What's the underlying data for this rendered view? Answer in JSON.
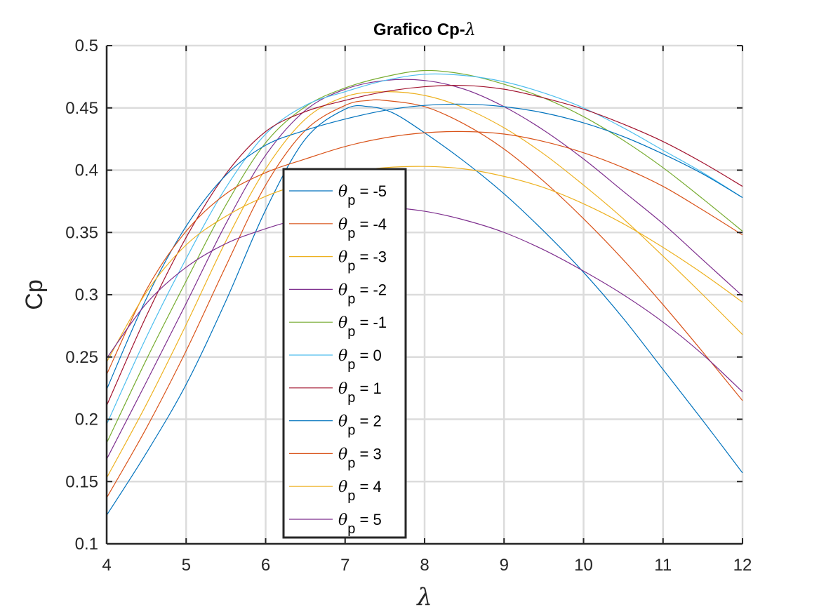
{
  "chart_data": {
    "type": "line",
    "title_prefix": "Grafico Cp-",
    "title_symbol": "λ",
    "xlabel": "λ",
    "ylabel": "Cp",
    "xlim": [
      4,
      12
    ],
    "ylim": [
      0.1,
      0.5
    ],
    "xticks": [
      "4",
      "5",
      "6",
      "7",
      "8",
      "9",
      "10",
      "11",
      "12"
    ],
    "yticks": [
      "0.1",
      "0.15",
      "0.2",
      "0.25",
      "0.3",
      "0.35",
      "0.4",
      "0.45",
      "0.5"
    ],
    "grid": true,
    "legend_location": "inside, lower center-left",
    "legend_symbol": "θ",
    "legend_subscript": "p",
    "series": [
      {
        "name": "-5",
        "color": "#0072BD",
        "x": [
          4,
          4.5,
          5,
          5.5,
          6,
          6.5,
          7,
          7.3,
          7.6,
          8,
          8.5,
          9,
          9.5,
          10,
          10.5,
          11,
          11.5,
          12
        ],
        "y": [
          0.123,
          0.173,
          0.228,
          0.295,
          0.368,
          0.425,
          0.449,
          0.451,
          0.446,
          0.43,
          0.407,
          0.381,
          0.351,
          0.318,
          0.281,
          0.24,
          0.199,
          0.157
        ]
      },
      {
        "name": "-4",
        "color": "#D95319",
        "x": [
          4,
          4.5,
          5,
          5.5,
          6,
          6.5,
          7,
          7.3,
          7.5,
          8,
          8.5,
          9,
          9.5,
          10,
          10.5,
          11,
          11.5,
          12
        ],
        "y": [
          0.137,
          0.193,
          0.255,
          0.323,
          0.388,
          0.432,
          0.452,
          0.456,
          0.456,
          0.451,
          0.437,
          0.417,
          0.391,
          0.361,
          0.328,
          0.292,
          0.254,
          0.215
        ]
      },
      {
        "name": "-3",
        "color": "#EDB120",
        "x": [
          4,
          4.5,
          5,
          5.5,
          6,
          6.5,
          7,
          7.5,
          8,
          8.5,
          9,
          9.5,
          10,
          10.5,
          11,
          11.5,
          12
        ],
        "y": [
          0.153,
          0.212,
          0.276,
          0.343,
          0.401,
          0.441,
          0.459,
          0.463,
          0.46,
          0.45,
          0.434,
          0.413,
          0.388,
          0.361,
          0.331,
          0.3,
          0.268
        ]
      },
      {
        "name": "-2",
        "color": "#7E2F8E",
        "x": [
          4,
          4.5,
          5,
          5.5,
          6,
          6.5,
          7,
          7.5,
          8,
          8.5,
          9,
          9.5,
          10,
          10.5,
          11,
          11.5,
          12
        ],
        "y": [
          0.168,
          0.23,
          0.293,
          0.357,
          0.412,
          0.448,
          0.465,
          0.472,
          0.472,
          0.465,
          0.451,
          0.432,
          0.409,
          0.383,
          0.357,
          0.328,
          0.299
        ]
      },
      {
        "name": "-1",
        "color": "#77AC30",
        "x": [
          4,
          4.5,
          5,
          5.5,
          6,
          6.5,
          7,
          7.5,
          8,
          8.5,
          9,
          9.5,
          10,
          10.5,
          11,
          11.5,
          12
        ],
        "y": [
          0.181,
          0.248,
          0.311,
          0.372,
          0.422,
          0.451,
          0.466,
          0.475,
          0.48,
          0.477,
          0.469,
          0.458,
          0.443,
          0.424,
          0.402,
          0.377,
          0.351
        ]
      },
      {
        "name": "0",
        "color": "#4DBEEE",
        "x": [
          4,
          4.5,
          5,
          5.5,
          6,
          6.5,
          7,
          7.5,
          8,
          8.5,
          9,
          9.5,
          10,
          10.5,
          11,
          11.5,
          12
        ],
        "y": [
          0.196,
          0.266,
          0.329,
          0.386,
          0.429,
          0.452,
          0.463,
          0.472,
          0.477,
          0.476,
          0.471,
          0.462,
          0.45,
          0.434,
          0.416,
          0.398,
          0.378
        ]
      },
      {
        "name": "1",
        "color": "#A2142F",
        "x": [
          4,
          4.5,
          5,
          5.5,
          6,
          6.5,
          7,
          7.5,
          8,
          8.5,
          9,
          9.5,
          10,
          10.5,
          11,
          11.5,
          12
        ],
        "y": [
          0.211,
          0.283,
          0.346,
          0.397,
          0.431,
          0.447,
          0.456,
          0.463,
          0.467,
          0.468,
          0.465,
          0.458,
          0.449,
          0.437,
          0.423,
          0.406,
          0.387
        ]
      },
      {
        "name": "2",
        "color": "#0072BD",
        "x": [
          4,
          4.5,
          5,
          5.5,
          6,
          6.5,
          7,
          7.5,
          8,
          8.5,
          9,
          9.5,
          10,
          10.5,
          11,
          11.5,
          12
        ],
        "y": [
          0.224,
          0.297,
          0.355,
          0.396,
          0.42,
          0.432,
          0.441,
          0.448,
          0.452,
          0.453,
          0.451,
          0.446,
          0.438,
          0.427,
          0.413,
          0.397,
          0.378
        ]
      },
      {
        "name": "3",
        "color": "#D95319",
        "x": [
          4,
          4.5,
          5,
          5.5,
          6,
          6.5,
          7,
          7.5,
          8,
          8.5,
          9,
          9.5,
          10,
          10.5,
          11,
          11.5,
          12
        ],
        "y": [
          0.236,
          0.304,
          0.351,
          0.381,
          0.398,
          0.409,
          0.419,
          0.426,
          0.43,
          0.431,
          0.429,
          0.423,
          0.414,
          0.402,
          0.387,
          0.368,
          0.348
        ]
      },
      {
        "name": "4",
        "color": "#EDB120",
        "x": [
          4,
          4.5,
          5,
          5.5,
          6,
          6.5,
          7,
          7.5,
          8,
          8.5,
          9,
          9.5,
          10,
          10.5,
          11,
          11.5,
          12
        ],
        "y": [
          0.246,
          0.302,
          0.34,
          0.363,
          0.379,
          0.39,
          0.398,
          0.402,
          0.403,
          0.401,
          0.395,
          0.386,
          0.373,
          0.357,
          0.338,
          0.317,
          0.294
        ]
      },
      {
        "name": "5",
        "color": "#7E2F8E",
        "x": [
          4,
          4.5,
          5,
          5.5,
          6,
          6.5,
          7,
          7.5,
          8,
          8.5,
          9,
          9.5,
          10,
          10.5,
          11,
          11.5,
          12
        ],
        "y": [
          0.249,
          0.293,
          0.322,
          0.341,
          0.353,
          0.362,
          0.368,
          0.37,
          0.367,
          0.36,
          0.35,
          0.336,
          0.319,
          0.3,
          0.278,
          0.252,
          0.222
        ]
      }
    ]
  }
}
